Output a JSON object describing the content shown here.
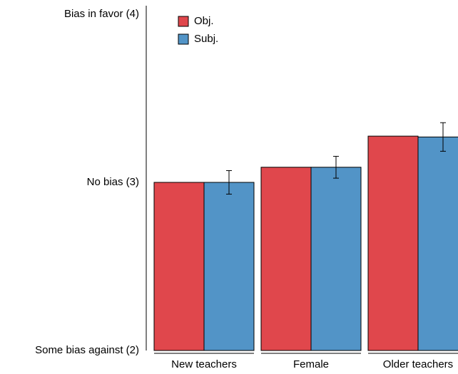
{
  "chart_data": {
    "type": "bar",
    "categories": [
      "New teachers",
      "Female",
      "Older teachers"
    ],
    "series": [
      {
        "name": "Obj.",
        "color": "#e0474c",
        "values": [
          3.0,
          3.09,
          3.275
        ]
      },
      {
        "name": "Subj.",
        "color": "#5294c7",
        "values": [
          3.0,
          3.09,
          3.27
        ],
        "errors": [
          0.07,
          0.065,
          0.085
        ]
      }
    ],
    "ylim": [
      2,
      4
    ],
    "yticks": [
      {
        "value": 2,
        "label": "Some bias against (2)"
      },
      {
        "value": 3,
        "label": "No bias (3)"
      },
      {
        "value": 4,
        "label": "Bias in favor (4)"
      }
    ],
    "legend": "top-left"
  }
}
